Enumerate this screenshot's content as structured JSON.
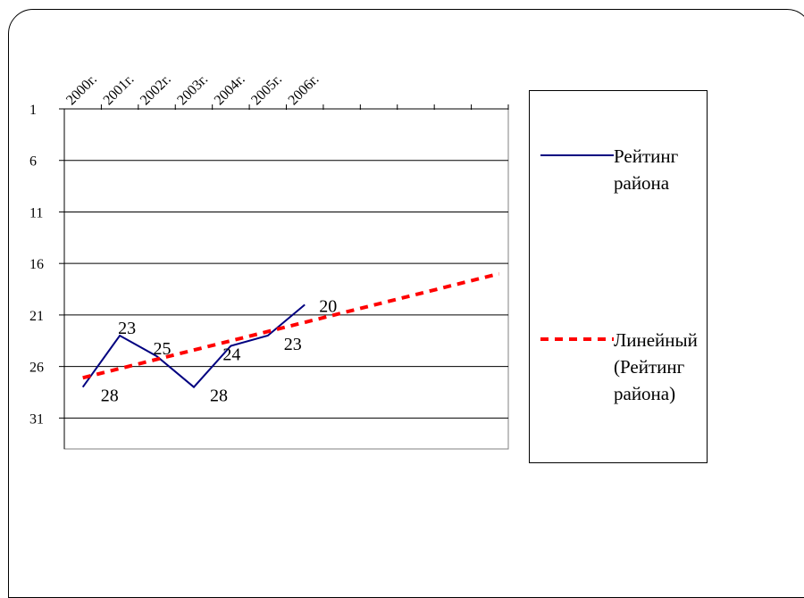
{
  "chart_data": {
    "type": "line",
    "categories": [
      "2000г.",
      "2001г.",
      "2002г.",
      "2003г.",
      "2004г.",
      "2005г.",
      "2006г.",
      "",
      "",
      "",
      "",
      ""
    ],
    "yticks": [
      1,
      6,
      11,
      16,
      21,
      26,
      31
    ],
    "ylim": [
      1,
      34
    ],
    "y_reversed": true,
    "grid": true,
    "legend_position": "right",
    "series": [
      {
        "name": "Рейтинг района",
        "color": "#000080",
        "style": "solid",
        "x": [
          0.5,
          1.5,
          2.5,
          3.5,
          4.5,
          5.5,
          6.5
        ],
        "values": [
          28,
          23,
          25,
          28,
          24,
          23,
          20
        ],
        "data_labels": [
          "28",
          "23",
          "25",
          "28",
          "24",
          "23",
          "20"
        ]
      },
      {
        "name": "Линейный (Рейтинг района)",
        "color": "#ff0000",
        "style": "dashed",
        "x": [
          0.5,
          11.75
        ],
        "values": [
          27.1,
          17.0
        ]
      }
    ]
  },
  "legend": {
    "items": [
      {
        "lines": [
          "Рейтинг",
          "района"
        ]
      },
      {
        "lines": [
          "Линейный",
          "(Рейтинг",
          "района)"
        ]
      }
    ]
  }
}
